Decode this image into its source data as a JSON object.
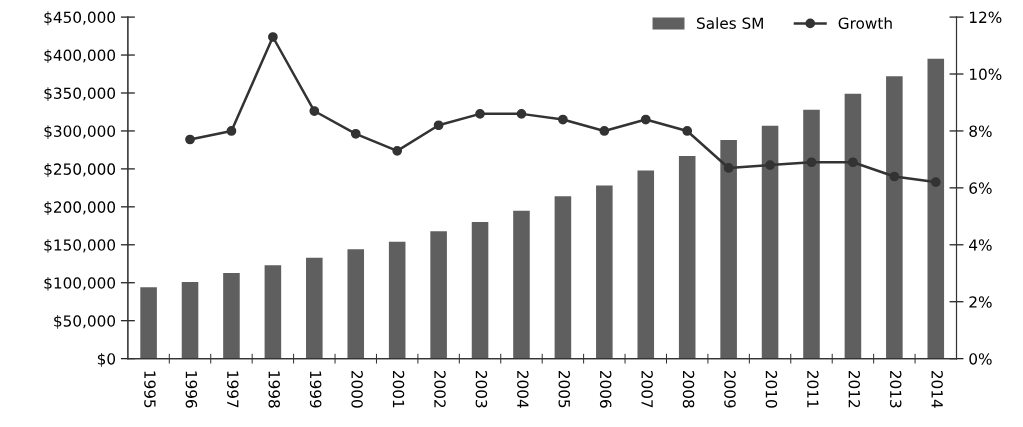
{
  "chart_data": {
    "type": "bar",
    "categories": [
      "1995",
      "1996",
      "1997",
      "1998",
      "1999",
      "2000",
      "2001",
      "2002",
      "2003",
      "2004",
      "2005",
      "2006",
      "2007",
      "2008",
      "2009",
      "2010",
      "2011",
      "2012",
      "2013",
      "2014"
    ],
    "series": [
      {
        "name": "Sales SM",
        "color": "#5f5f5f",
        "values": [
          94000,
          101000,
          113000,
          123000,
          133000,
          144000,
          154000,
          168000,
          180000,
          195000,
          214000,
          228000,
          248000,
          267000,
          288000,
          307000,
          328000,
          349000,
          372000,
          395000
        ]
      },
      {
        "name": "Growth",
        "type": "line",
        "axis": "y2",
        "color": "#333333",
        "values": [
          null,
          7.7,
          8.0,
          11.3,
          8.7,
          7.9,
          7.3,
          8.2,
          8.6,
          8.6,
          8.4,
          8.0,
          8.4,
          8.0,
          6.7,
          6.8,
          6.9,
          6.9,
          6.4,
          6.2
        ]
      }
    ],
    "ylim": [
      0,
      450000
    ],
    "yticks": [
      {
        "value": 0,
        "label": "$0"
      },
      {
        "value": 50000,
        "label": "$50,000"
      },
      {
        "value": 100000,
        "label": "$100,000"
      },
      {
        "value": 150000,
        "label": "$150,000"
      },
      {
        "value": 200000,
        "label": "$200,000"
      },
      {
        "value": 250000,
        "label": "$250,000"
      },
      {
        "value": 300000,
        "label": "$300,000"
      },
      {
        "value": 350000,
        "label": "$350,000"
      },
      {
        "value": 400000,
        "label": "$400,000"
      },
      {
        "value": 450000,
        "label": "$450,000"
      }
    ],
    "y2lim": [
      0,
      12
    ],
    "y2ticks": [
      {
        "value": 0,
        "label": "0%"
      },
      {
        "value": 2,
        "label": "2%"
      },
      {
        "value": 4,
        "label": "4%"
      },
      {
        "value": 6,
        "label": "6%"
      },
      {
        "value": 8,
        "label": "8%"
      },
      {
        "value": 10,
        "label": "10%"
      },
      {
        "value": 12,
        "label": "12%"
      }
    ],
    "marker": "circle",
    "line_style": "solid",
    "grid": false,
    "legend": "top right"
  }
}
